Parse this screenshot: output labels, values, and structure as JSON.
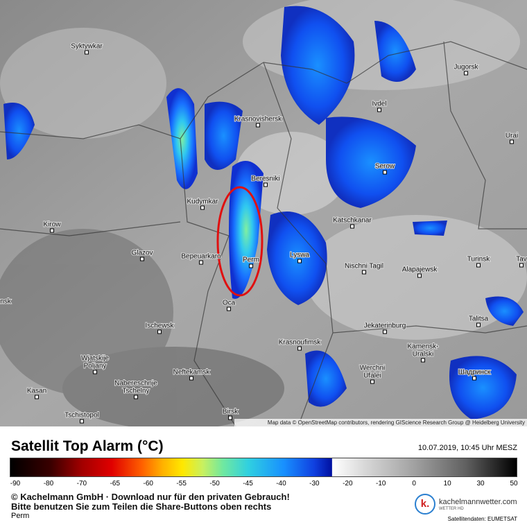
{
  "map": {
    "attribution": "Map data © OpenStreetMap contributors, rendering GIScience Research Group @ Heidelberg University",
    "cities": [
      [
        "Syktywkar"
      ],
      [
        "Jugorsk"
      ],
      [
        "Ivdel"
      ],
      [
        "Krasnovishersk"
      ],
      [
        "Urai"
      ],
      [
        "Serow"
      ],
      [
        "Beresniki"
      ],
      [
        "Kudymkar"
      ],
      [
        "Kirow"
      ],
      [
        "Katschkanar"
      ],
      [
        "Glazov"
      ],
      [
        "Bepeuarkaro"
      ],
      [
        "Perm"
      ],
      [
        "Lyswa"
      ],
      [
        "Nischni Tagil"
      ],
      [
        "Alapajewsk"
      ],
      [
        "Turinsk"
      ],
      [
        "Tav"
      ],
      [
        "nsk"
      ],
      [
        "Oca"
      ],
      [
        "Talitsa"
      ],
      [
        "Ischewsk"
      ],
      [
        "Jekaterinburg"
      ],
      [
        "Krasnoufimsk"
      ],
      [
        "Kamensk-",
        "Uralski"
      ],
      [
        "Wjatskije",
        "Poljany"
      ],
      [
        "Werchni",
        "Ufalei"
      ],
      [
        "Neftekamsk"
      ],
      [
        "Шадринск"
      ],
      [
        "Nabereschnje",
        "Tschelny"
      ],
      [
        "Kasan"
      ],
      [
        "Tschistopol"
      ],
      [
        "Birsk"
      ]
    ]
  },
  "legend": {
    "title": "Satellit Top Alarm (°C)",
    "timestamp": "10.07.2019, 10:45 Uhr MESZ",
    "ticks": [
      -90,
      -80,
      -70,
      -65,
      -60,
      -55,
      -50,
      -45,
      -40,
      -30,
      -20,
      -10,
      0,
      10,
      30,
      50
    ]
  },
  "footer": {
    "copyright": "© Kachelmann GmbH · Download nur für den privaten Gebrauch!",
    "share_note": "Bitte benutzen Sie zum Teilen die Share-Buttons oben rechts",
    "location": "Perm",
    "logo_letter": "k.",
    "logo_site": "kachelmannwetter.com",
    "logo_sub": "WETTER HD",
    "source": "Satellitendaten: EUMETSAT"
  }
}
